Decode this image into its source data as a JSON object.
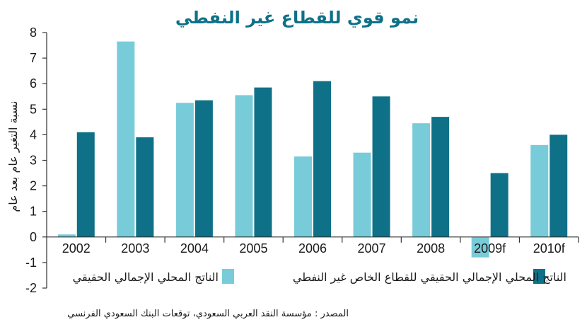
{
  "chart_data": {
    "type": "bar",
    "title": "نمو قوي للقطاع غير النفطي",
    "ylabel": "نسبة التغير عام بعد عام",
    "categories": [
      "2002",
      "2003",
      "2004",
      "2005",
      "2006",
      "2007",
      "2008",
      "2009f",
      "2010f"
    ],
    "ylim": [
      -2,
      8
    ],
    "yticks": [
      -2,
      -1,
      0,
      1,
      2,
      3,
      4,
      5,
      6,
      7,
      8
    ],
    "grid": false,
    "legend_position": "bottom",
    "series": [
      {
        "name": "الناتج المحلي الإجمالي الحقيقي",
        "color": "#78ccd9",
        "values": [
          0.1,
          7.65,
          5.25,
          5.55,
          3.15,
          3.3,
          4.45,
          -0.8,
          3.6
        ]
      },
      {
        "name": "الناتج المحلي الإجمالي الحقيقي للقطاع الخاص غير النفطي",
        "color": "#0e7188",
        "values": [
          4.1,
          3.9,
          5.35,
          5.85,
          6.1,
          5.5,
          4.7,
          2.5,
          4.0
        ]
      }
    ],
    "source": "المصدر : مؤسسة النقد العربي السعودي، توقعات البنك السعودي الفرنسي"
  }
}
